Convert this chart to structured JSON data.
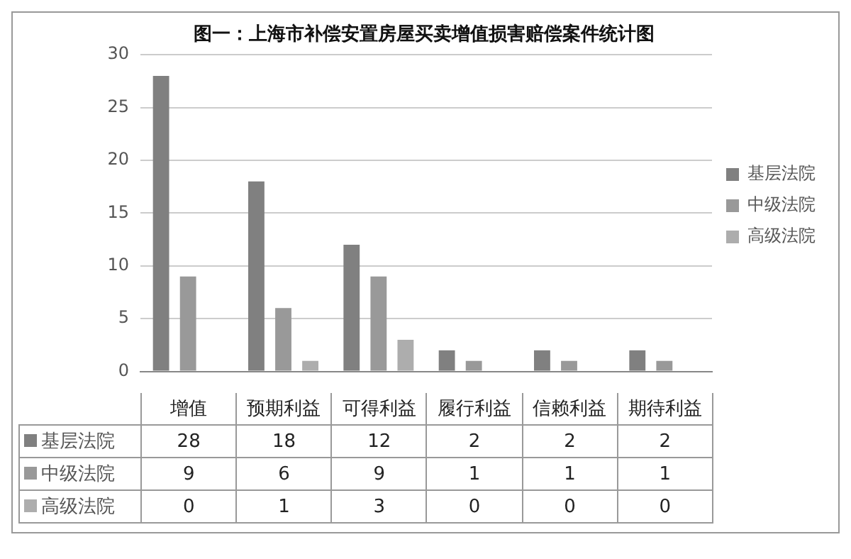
{
  "chart_data": {
    "type": "bar",
    "title": "图一：上海市补偿安置房屋买卖增值损害赔偿案件统计图",
    "categories": [
      "增值",
      "预期利益",
      "可得利益",
      "履行利益",
      "信赖利益",
      "期待利益"
    ],
    "series": [
      {
        "name": "基层法院",
        "color": "#808080",
        "values": [
          28,
          18,
          12,
          2,
          2,
          2
        ]
      },
      {
        "name": "中级法院",
        "color": "#999999",
        "values": [
          9,
          6,
          9,
          1,
          1,
          1
        ]
      },
      {
        "name": "高级法院",
        "color": "#adadad",
        "values": [
          0,
          1,
          3,
          0,
          0,
          0
        ]
      }
    ],
    "ylim": [
      0,
      30
    ],
    "yticks": [
      0,
      5,
      10,
      15,
      20,
      25,
      30
    ],
    "grid": "y",
    "legend": "right",
    "data_labels": true
  }
}
